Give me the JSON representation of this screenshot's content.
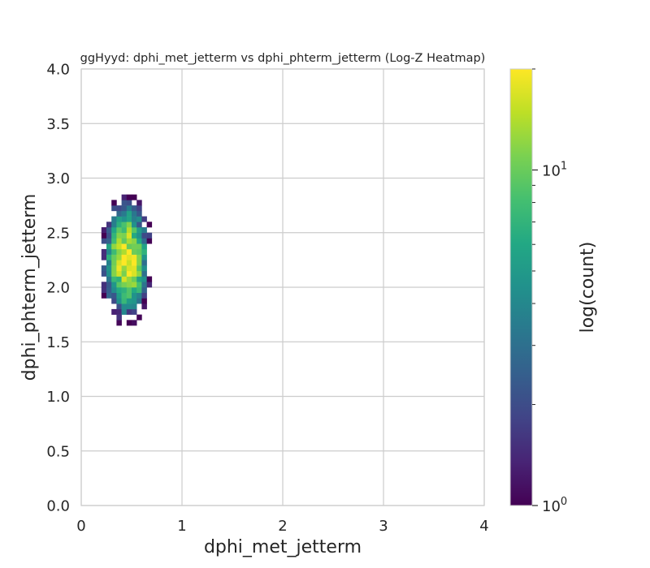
{
  "chart_data": {
    "type": "heatmap",
    "title": "ggHyyd: dphi_met_jetterm vs dphi_phterm_jetterm (Log-Z Heatmap)",
    "xlabel": "dphi_met_jetterm",
    "ylabel": "dphi_phterm_jetterm",
    "xlim": [
      0,
      4
    ],
    "ylim": [
      0,
      4
    ],
    "x_ticks": [
      "0",
      "1",
      "2",
      "3",
      "4"
    ],
    "y_ticks": [
      "0.0",
      "0.5",
      "1.0",
      "1.5",
      "2.0",
      "2.5",
      "3.0",
      "3.5",
      "4.0"
    ],
    "grid": true,
    "colorbar": {
      "label": "log(count)",
      "scale": "log",
      "colormap": "viridis",
      "range": [
        1,
        20
      ],
      "ticks": [
        {
          "value": 1,
          "base": "10",
          "exp": "0"
        },
        {
          "value": 10,
          "base": "10",
          "exp": "1"
        }
      ],
      "minor_ticks": [
        2,
        3,
        4,
        5,
        6,
        7,
        8,
        9,
        20
      ]
    },
    "bin_width_x": 0.05,
    "bin_width_y": 0.05,
    "cluster": {
      "x_range": [
        0.1,
        0.7
      ],
      "y_range": [
        1.6,
        2.9
      ],
      "peak": [
        0.45,
        2.25
      ],
      "peak_count": 20
    }
  }
}
